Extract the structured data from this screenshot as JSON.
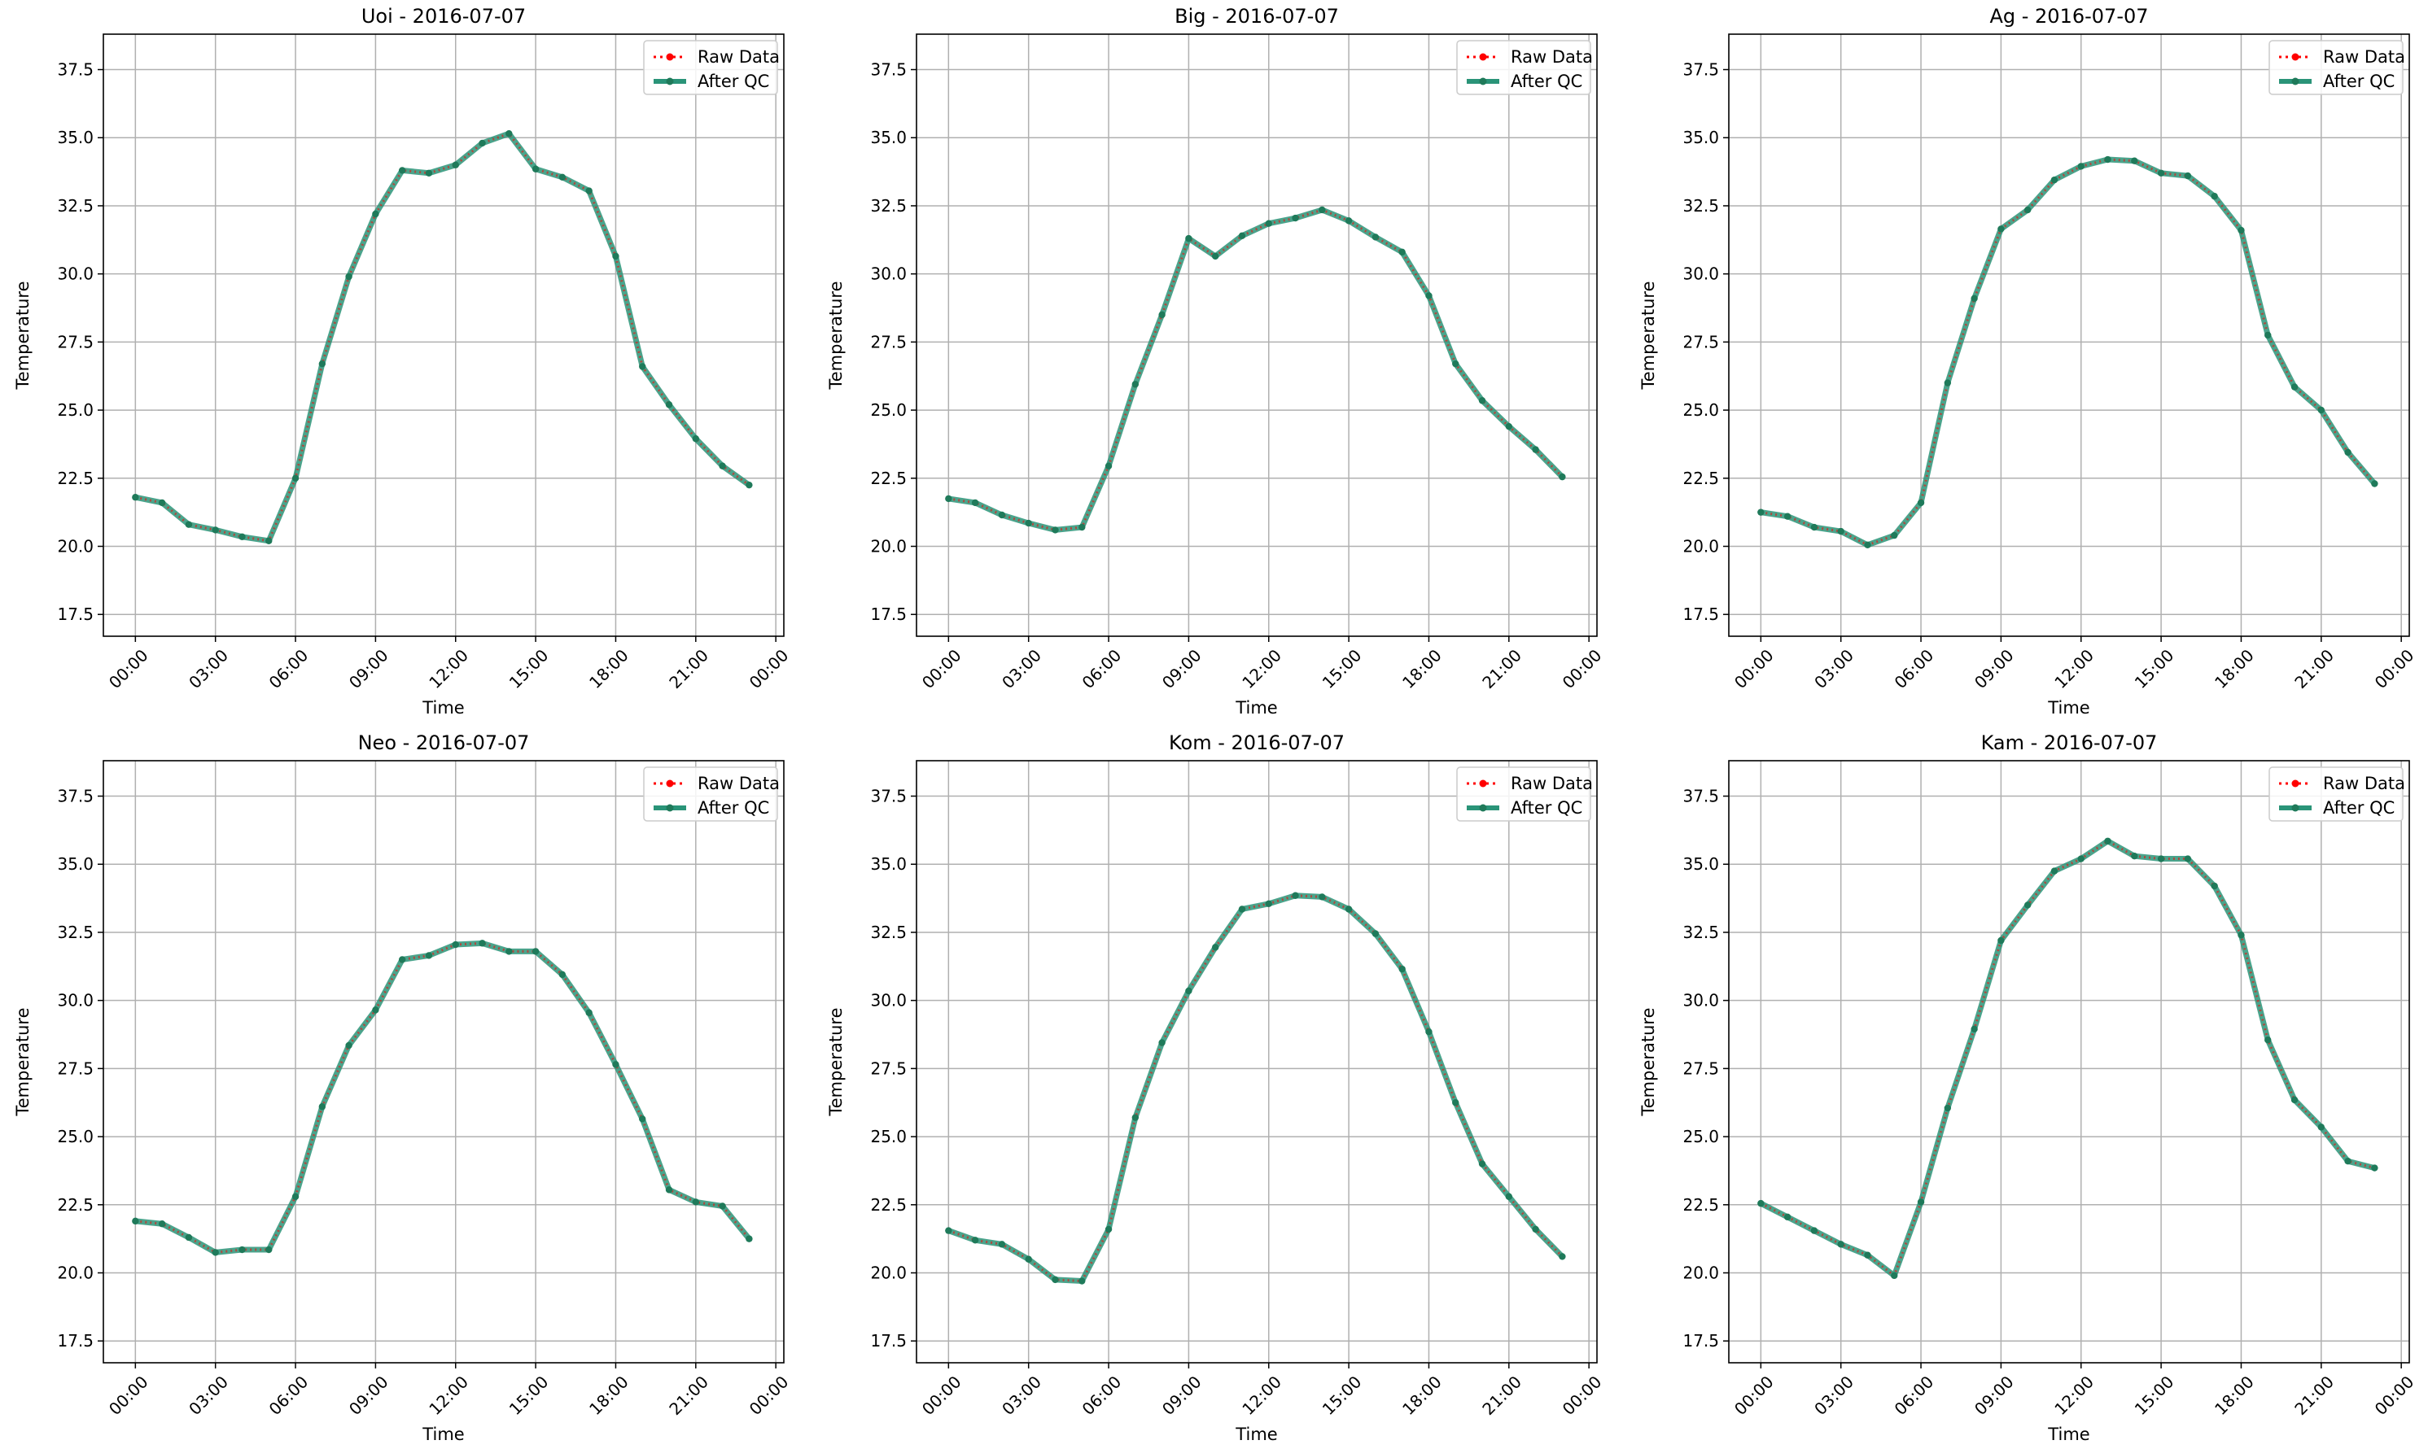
{
  "figure": {
    "colors": {
      "raw": "#ff0000",
      "qc": "#2a9478",
      "qc_marker": "#1f7a5a",
      "grid": "#b0b0b0",
      "axes": "#000000"
    }
  },
  "chart_data": [
    {
      "type": "line",
      "title": "Uoi - 2016-07-07",
      "xlabel": "Time",
      "ylabel": "Temperature",
      "x_ticks": [
        "00:00",
        "03:00",
        "06:00",
        "09:00",
        "12:00",
        "15:00",
        "18:00",
        "21:00",
        "00:00"
      ],
      "y_ticks": [
        "17.5",
        "20.0",
        "22.5",
        "25.0",
        "27.5",
        "30.0",
        "32.5",
        "35.0",
        "37.5"
      ],
      "ylim": [
        16.7,
        38.8
      ],
      "xlim": [
        "2016-07-07 00:00 -1.2h",
        "2016-07-08 00:00 +0.3h"
      ],
      "grid": true,
      "legend_position": "top-right",
      "x": [
        "00:00",
        "01:00",
        "02:00",
        "03:00",
        "04:00",
        "05:00",
        "06:00",
        "07:00",
        "08:00",
        "09:00",
        "10:00",
        "11:00",
        "12:00",
        "13:00",
        "14:00",
        "15:00",
        "16:00",
        "17:00",
        "18:00",
        "19:00",
        "20:00",
        "21:00",
        "22:00",
        "23:00"
      ],
      "series": [
        {
          "name": "Raw Data",
          "style": "dotted-red",
          "values": [
            21.8,
            21.6,
            20.8,
            20.6,
            20.35,
            20.2,
            22.5,
            26.7,
            29.9,
            32.2,
            33.8,
            33.7,
            34.0,
            34.8,
            35.15,
            33.85,
            33.55,
            33.05,
            30.65,
            26.6,
            25.2,
            23.95,
            22.95,
            22.25
          ]
        },
        {
          "name": "After QC",
          "style": "solid-green",
          "values": [
            21.8,
            21.6,
            20.8,
            20.6,
            20.35,
            20.2,
            22.5,
            26.7,
            29.9,
            32.2,
            33.8,
            33.7,
            34.0,
            34.8,
            35.15,
            33.85,
            33.55,
            33.05,
            30.65,
            26.6,
            25.2,
            23.95,
            22.95,
            22.25
          ]
        }
      ]
    },
    {
      "type": "line",
      "title": "Big - 2016-07-07",
      "xlabel": "Time",
      "ylabel": "Temperature",
      "x_ticks": [
        "00:00",
        "03:00",
        "06:00",
        "09:00",
        "12:00",
        "15:00",
        "18:00",
        "21:00",
        "00:00"
      ],
      "y_ticks": [
        "17.5",
        "20.0",
        "22.5",
        "25.0",
        "27.5",
        "30.0",
        "32.5",
        "35.0",
        "37.5"
      ],
      "ylim": [
        16.7,
        38.8
      ],
      "grid": true,
      "legend_position": "top-right",
      "x": [
        "00:00",
        "01:00",
        "02:00",
        "03:00",
        "04:00",
        "05:00",
        "06:00",
        "07:00",
        "08:00",
        "09:00",
        "10:00",
        "11:00",
        "12:00",
        "13:00",
        "14:00",
        "15:00",
        "16:00",
        "17:00",
        "18:00",
        "19:00",
        "20:00",
        "21:00",
        "22:00",
        "23:00"
      ],
      "series": [
        {
          "name": "Raw Data",
          "style": "dotted-red",
          "values": [
            21.75,
            21.6,
            21.15,
            20.85,
            20.6,
            20.7,
            22.95,
            25.95,
            28.5,
            31.3,
            30.65,
            31.4,
            31.85,
            32.05,
            32.35,
            31.95,
            31.35,
            30.8,
            29.2,
            26.7,
            25.35,
            24.4,
            23.55,
            22.55
          ]
        },
        {
          "name": "After QC",
          "style": "solid-green",
          "values": [
            21.75,
            21.6,
            21.15,
            20.85,
            20.6,
            20.7,
            22.95,
            25.95,
            28.5,
            31.3,
            30.65,
            31.4,
            31.85,
            32.05,
            32.35,
            31.95,
            31.35,
            30.8,
            29.2,
            26.7,
            25.35,
            24.4,
            23.55,
            22.55
          ]
        }
      ]
    },
    {
      "type": "line",
      "title": "Ag - 2016-07-07",
      "xlabel": "Time",
      "ylabel": "Temperature",
      "x_ticks": [
        "00:00",
        "03:00",
        "06:00",
        "09:00",
        "12:00",
        "15:00",
        "18:00",
        "21:00",
        "00:00"
      ],
      "y_ticks": [
        "17.5",
        "20.0",
        "22.5",
        "25.0",
        "27.5",
        "30.0",
        "32.5",
        "35.0",
        "37.5"
      ],
      "ylim": [
        16.7,
        38.8
      ],
      "grid": true,
      "legend_position": "top-right",
      "x": [
        "00:00",
        "01:00",
        "02:00",
        "03:00",
        "04:00",
        "05:00",
        "06:00",
        "07:00",
        "08:00",
        "09:00",
        "10:00",
        "11:00",
        "12:00",
        "13:00",
        "14:00",
        "15:00",
        "16:00",
        "17:00",
        "18:00",
        "19:00",
        "20:00",
        "21:00",
        "22:00",
        "23:00"
      ],
      "series": [
        {
          "name": "Raw Data",
          "style": "dotted-red",
          "values": [
            21.25,
            21.1,
            20.7,
            20.55,
            20.05,
            20.4,
            21.6,
            26.0,
            29.1,
            31.65,
            32.35,
            33.45,
            33.95,
            34.2,
            34.15,
            33.7,
            33.6,
            32.85,
            31.6,
            27.75,
            25.85,
            25.0,
            23.45,
            22.3
          ]
        },
        {
          "name": "After QC",
          "style": "solid-green",
          "values": [
            21.25,
            21.1,
            20.7,
            20.55,
            20.05,
            20.4,
            21.6,
            26.0,
            29.1,
            31.65,
            32.35,
            33.45,
            33.95,
            34.2,
            34.15,
            33.7,
            33.6,
            32.85,
            31.6,
            27.75,
            25.85,
            25.0,
            23.45,
            22.3
          ]
        }
      ]
    },
    {
      "type": "line",
      "title": "Neo - 2016-07-07",
      "xlabel": "Time",
      "ylabel": "Temperature",
      "x_ticks": [
        "00:00",
        "03:00",
        "06:00",
        "09:00",
        "12:00",
        "15:00",
        "18:00",
        "21:00",
        "00:00"
      ],
      "y_ticks": [
        "17.5",
        "20.0",
        "22.5",
        "25.0",
        "27.5",
        "30.0",
        "32.5",
        "35.0",
        "37.5"
      ],
      "ylim": [
        16.7,
        38.8
      ],
      "grid": true,
      "legend_position": "top-right",
      "x": [
        "00:00",
        "01:00",
        "02:00",
        "03:00",
        "04:00",
        "05:00",
        "06:00",
        "07:00",
        "08:00",
        "09:00",
        "10:00",
        "11:00",
        "12:00",
        "13:00",
        "14:00",
        "15:00",
        "16:00",
        "17:00",
        "18:00",
        "19:00",
        "20:00",
        "21:00",
        "22:00",
        "23:00"
      ],
      "series": [
        {
          "name": "Raw Data",
          "style": "dotted-red",
          "values": [
            21.9,
            21.8,
            21.3,
            20.75,
            20.85,
            20.85,
            22.8,
            26.1,
            28.35,
            29.65,
            31.5,
            31.65,
            32.05,
            32.1,
            31.8,
            31.8,
            30.95,
            29.55,
            27.65,
            25.65,
            23.05,
            22.6,
            22.45,
            21.25
          ]
        },
        {
          "name": "After QC",
          "style": "solid-green",
          "values": [
            21.9,
            21.8,
            21.3,
            20.75,
            20.85,
            20.85,
            22.8,
            26.1,
            28.35,
            29.65,
            31.5,
            31.65,
            32.05,
            32.1,
            31.8,
            31.8,
            30.95,
            29.55,
            27.65,
            25.65,
            23.05,
            22.6,
            22.45,
            21.25
          ]
        }
      ]
    },
    {
      "type": "line",
      "title": "Kom - 2016-07-07",
      "xlabel": "Time",
      "ylabel": "Temperature",
      "x_ticks": [
        "00:00",
        "03:00",
        "06:00",
        "09:00",
        "12:00",
        "15:00",
        "18:00",
        "21:00",
        "00:00"
      ],
      "y_ticks": [
        "17.5",
        "20.0",
        "22.5",
        "25.0",
        "27.5",
        "30.0",
        "32.5",
        "35.0",
        "37.5"
      ],
      "ylim": [
        16.7,
        38.8
      ],
      "grid": true,
      "legend_position": "top-right",
      "x": [
        "00:00",
        "01:00",
        "02:00",
        "03:00",
        "04:00",
        "05:00",
        "06:00",
        "07:00",
        "08:00",
        "09:00",
        "10:00",
        "11:00",
        "12:00",
        "13:00",
        "14:00",
        "15:00",
        "16:00",
        "17:00",
        "18:00",
        "19:00",
        "20:00",
        "21:00",
        "22:00",
        "23:00"
      ],
      "series": [
        {
          "name": "Raw Data",
          "style": "dotted-red",
          "values": [
            21.55,
            21.2,
            21.05,
            20.5,
            19.75,
            19.7,
            21.6,
            25.7,
            28.45,
            30.35,
            31.95,
            33.35,
            33.55,
            33.85,
            33.8,
            33.35,
            32.45,
            31.15,
            28.85,
            26.25,
            24.0,
            22.8,
            21.6,
            20.6
          ]
        },
        {
          "name": "After QC",
          "style": "solid-green",
          "values": [
            21.55,
            21.2,
            21.05,
            20.5,
            19.75,
            19.7,
            21.6,
            25.7,
            28.45,
            30.35,
            31.95,
            33.35,
            33.55,
            33.85,
            33.8,
            33.35,
            32.45,
            31.15,
            28.85,
            26.25,
            24.0,
            22.8,
            21.6,
            20.6
          ]
        }
      ]
    },
    {
      "type": "line",
      "title": "Kam - 2016-07-07",
      "xlabel": "Time",
      "ylabel": "Temperature",
      "x_ticks": [
        "00:00",
        "03:00",
        "06:00",
        "09:00",
        "12:00",
        "15:00",
        "18:00",
        "21:00",
        "00:00"
      ],
      "y_ticks": [
        "17.5",
        "20.0",
        "22.5",
        "25.0",
        "27.5",
        "30.0",
        "32.5",
        "35.0",
        "37.5"
      ],
      "ylim": [
        16.7,
        38.8
      ],
      "grid": true,
      "legend_position": "top-right",
      "x": [
        "00:00",
        "01:00",
        "02:00",
        "03:00",
        "04:00",
        "05:00",
        "06:00",
        "07:00",
        "08:00",
        "09:00",
        "10:00",
        "11:00",
        "12:00",
        "13:00",
        "14:00",
        "15:00",
        "16:00",
        "17:00",
        "18:00",
        "19:00",
        "20:00",
        "21:00",
        "22:00",
        "23:00"
      ],
      "series": [
        {
          "name": "Raw Data",
          "style": "dotted-red",
          "values": [
            22.55,
            22.05,
            21.55,
            21.05,
            20.65,
            19.9,
            22.6,
            26.05,
            28.95,
            32.2,
            33.5,
            34.75,
            35.2,
            35.85,
            35.3,
            35.2,
            35.2,
            34.2,
            32.4,
            28.55,
            26.35,
            25.35,
            24.1,
            23.85
          ]
        },
        {
          "name": "After QC",
          "style": "solid-green",
          "values": [
            22.55,
            22.05,
            21.55,
            21.05,
            20.65,
            19.9,
            22.6,
            26.05,
            28.95,
            32.2,
            33.5,
            34.75,
            35.2,
            35.85,
            35.3,
            35.2,
            35.2,
            34.2,
            32.4,
            28.55,
            26.35,
            25.35,
            24.1,
            23.85
          ]
        }
      ]
    }
  ]
}
